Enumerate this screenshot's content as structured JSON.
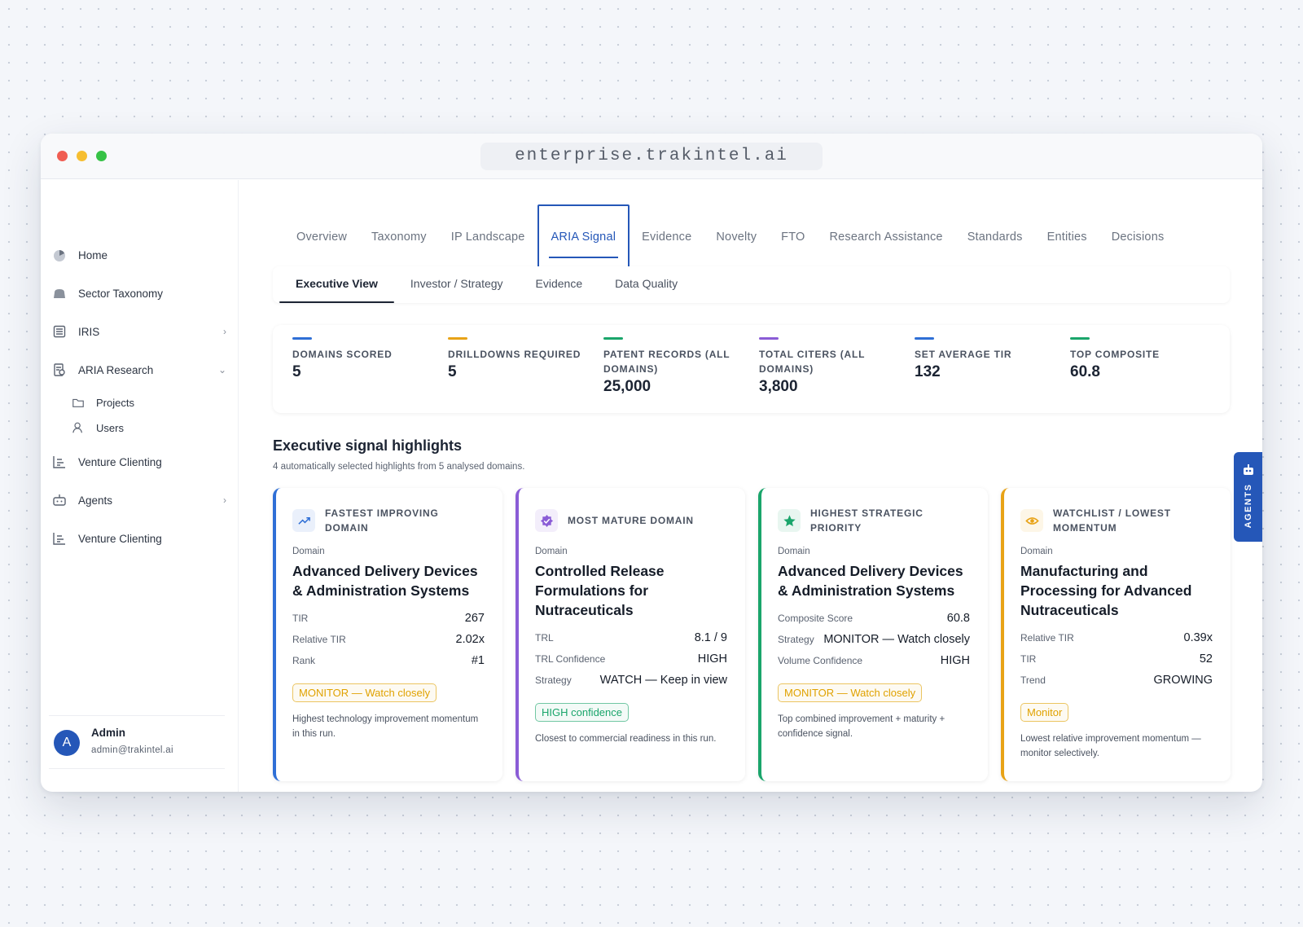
{
  "browser": {
    "url": "enterprise.trakintel.ai"
  },
  "tabs": [
    "Overview",
    "Taxonomy",
    "IP Landscape",
    "ARIA Signal",
    "Evidence",
    "Novelty",
    "FTO",
    "Research Assistance",
    "Standards",
    "Entities",
    "Decisions"
  ],
  "active_tab": 3,
  "sidebar": {
    "items": [
      {
        "label": "Home",
        "icon": "home"
      },
      {
        "label": "Sector Taxonomy",
        "icon": "bag"
      },
      {
        "label": "IRIS",
        "icon": "list",
        "chevron": "right"
      },
      {
        "label": "ARIA Research",
        "icon": "doc",
        "chevron": "down",
        "children": [
          {
            "label": "Projects",
            "icon": "folder"
          },
          {
            "label": "Users",
            "icon": "user"
          }
        ]
      },
      {
        "label": "Venture Clienting",
        "icon": "chart"
      },
      {
        "label": "Agents",
        "icon": "bot",
        "chevron": "right"
      },
      {
        "label": "Venture Clienting",
        "icon": "chart"
      }
    ],
    "user": {
      "initial": "A",
      "name": "Admin",
      "email": "admin@trakintel.ai"
    }
  },
  "subtabs": [
    "Executive View",
    "Investor / Strategy",
    "Evidence",
    "Data Quality"
  ],
  "active_subtab": 0,
  "kpis": [
    {
      "label": "DOMAINS SCORED",
      "value": "5",
      "color": "#2f6fd6"
    },
    {
      "label": "DRILLDOWNS REQUIRED",
      "value": "5",
      "color": "#e8a317"
    },
    {
      "label": "PATENT RECORDS (ALL DOMAINS)",
      "value": "25,000",
      "color": "#1aa56b"
    },
    {
      "label": "TOTAL CITERS (ALL DOMAINS)",
      "value": "3,800",
      "color": "#8a5cd6"
    },
    {
      "label": "SET AVERAGE TIR",
      "value": "132",
      "color": "#2f6fd6"
    },
    {
      "label": "TOP COMPOSITE",
      "value": "60.8",
      "color": "#1aa56b"
    }
  ],
  "highlights": {
    "title": "Executive signal highlights",
    "subtitle": "4 automatically selected highlights from 5 analysed domains.",
    "cards": [
      {
        "heading": "FASTEST IMPROVING DOMAIN",
        "icon": "trend",
        "color": "#2f6fd6",
        "domain_label": "Domain",
        "domain": "Advanced Delivery Devices & Administration Systems",
        "metrics": [
          [
            "TIR",
            "267"
          ],
          [
            "Relative TIR",
            "2.02x"
          ],
          [
            "Rank",
            "#1"
          ]
        ],
        "badge": "MONITOR — Watch closely",
        "badge_color": "#e0a200",
        "note": "Highest technology improvement momentum in this run."
      },
      {
        "heading": "MOST MATURE DOMAIN",
        "icon": "check",
        "color": "#8a5cd6",
        "domain_label": "Domain",
        "domain": "Controlled Release Formulations for Nutraceuticals",
        "metrics": [
          [
            "TRL",
            "8.1 / 9"
          ],
          [
            "TRL Confidence",
            "HIGH"
          ],
          [
            "Strategy",
            "WATCH — Keep in view"
          ]
        ],
        "badge": "HIGH confidence",
        "badge_color": "#1aa56b",
        "note": "Closest to commercial readiness in this run."
      },
      {
        "heading": "HIGHEST STRATEGIC PRIORITY",
        "icon": "star",
        "color": "#1aa56b",
        "domain_label": "Domain",
        "domain": "Advanced Delivery Devices & Administration Systems",
        "metrics": [
          [
            "Composite Score",
            "60.8"
          ],
          [
            "Strategy",
            "MONITOR — Watch closely"
          ],
          [
            "Volume Confidence",
            "HIGH"
          ]
        ],
        "badge": "MONITOR — Watch closely",
        "badge_color": "#e0a200",
        "note": "Top combined improvement + maturity + confidence signal."
      },
      {
        "heading": "WATCHLIST / LOWEST MOMENTUM",
        "icon": "eye",
        "color": "#e8a317",
        "domain_label": "Domain",
        "domain": "Manufacturing and Processing for Advanced Nutraceuticals",
        "metrics": [
          [
            "Relative TIR",
            "0.39x"
          ],
          [
            "TIR",
            "52"
          ],
          [
            "Trend",
            "GROWING"
          ]
        ],
        "badge": "Monitor",
        "badge_color": "#e0a200",
        "note": "Lowest relative improvement momentum — monitor selectively."
      }
    ]
  },
  "agents_label": "AGENTS"
}
